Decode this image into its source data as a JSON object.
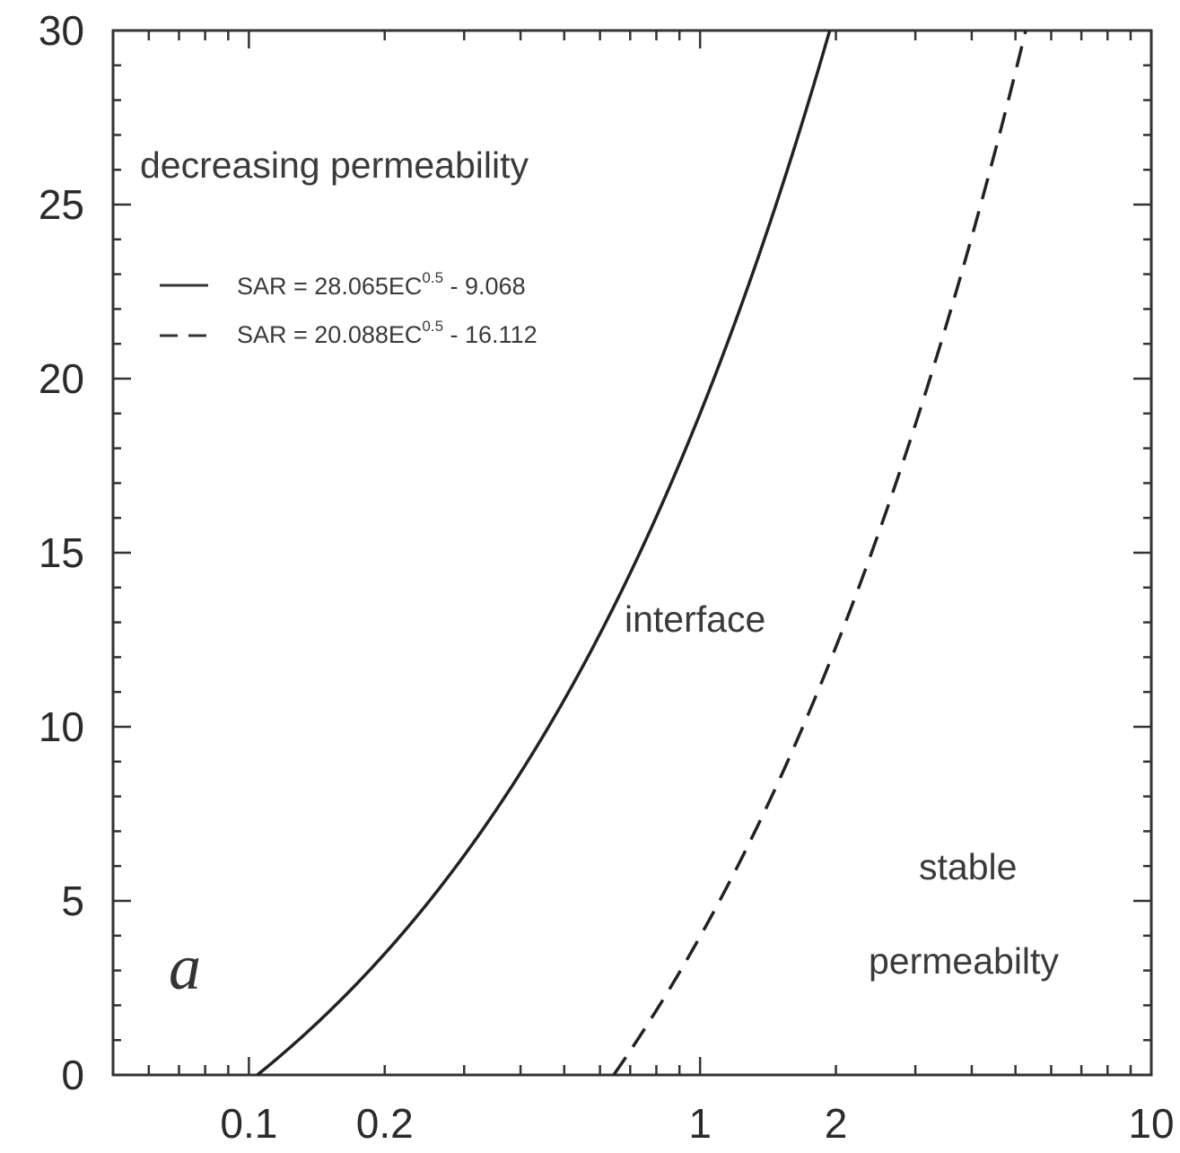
{
  "chart_data": {
    "type": "line",
    "x_scale": "log",
    "xlim": [
      0.05,
      10
    ],
    "ylim": [
      0,
      30
    ],
    "x_ticks": [
      {
        "value": 0.1,
        "label": "0.1"
      },
      {
        "value": 0.2,
        "label": "0.2"
      },
      {
        "value": 1,
        "label": "1"
      },
      {
        "value": 2,
        "label": "2"
      },
      {
        "value": 10,
        "label": "10"
      }
    ],
    "y_ticks": [
      {
        "value": 0,
        "label": "0"
      },
      {
        "value": 5,
        "label": "5"
      },
      {
        "value": 10,
        "label": "10"
      },
      {
        "value": 15,
        "label": "15"
      },
      {
        "value": 20,
        "label": "20"
      },
      {
        "value": 25,
        "label": "25"
      },
      {
        "value": 30,
        "label": "30"
      }
    ],
    "grid": false,
    "legend_position": "top-left",
    "series": [
      {
        "label": "SAR = 28.065EC",
        "exponent": "0.5",
        "label_suffix": " -  9.068",
        "style": "solid",
        "a": 28.065,
        "b": 9.068
      },
      {
        "label": "SAR = 20.088EC",
        "exponent": "0.5",
        "label_suffix": " - 16.112",
        "style": "dashed",
        "a": 20.088,
        "b": 16.112
      }
    ],
    "annotations": [
      {
        "text": "decreasing permeability",
        "x": 0.06,
        "y": 26
      },
      {
        "text": "interface",
        "x": 0.85,
        "y": 13
      },
      {
        "text": "stable",
        "x": 4.3,
        "y": 5.7
      },
      {
        "text": "permeabilty",
        "x": 4.4,
        "y": 3
      }
    ],
    "panel_label": "a"
  }
}
